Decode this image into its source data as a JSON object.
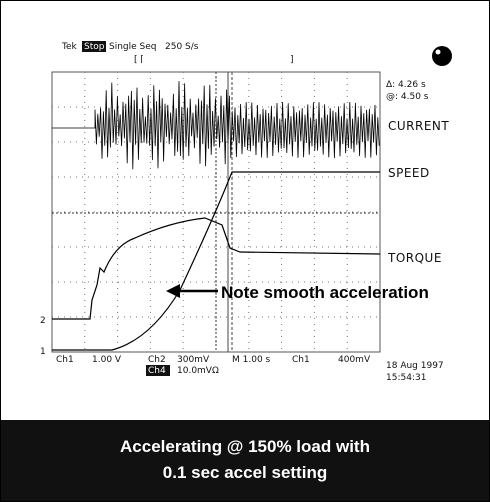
{
  "header": {
    "brand": "Tek",
    "state": "Stop",
    "mode": "Single Seq",
    "rate": "250 S/s"
  },
  "cursors": {
    "delta": "Δ: 4.26 s",
    "at": "@: 4.50 s"
  },
  "traces": {
    "current": "CURRENT",
    "speed": "SPEED",
    "torque": "TORQUE"
  },
  "markers": {
    "ch2": "2",
    "ch1": "1"
  },
  "annotation": "Note smooth acceleration",
  "footer": {
    "ch1": "Ch1",
    "ch1_scale": "1.00 V",
    "ch2": "Ch2",
    "ch2_scale": "300mV",
    "timebase": "M 1.00 s",
    "trigger_ch": "Ch1",
    "trigger_level": "400mV",
    "ch4": "Ch4",
    "ch4_scale": "10.0mVΩ",
    "date": "18 Aug 1997",
    "time": "15:54:31"
  },
  "caption": [
    "Accelerating @ 150% load with",
    "0.1 sec accel setting"
  ]
}
